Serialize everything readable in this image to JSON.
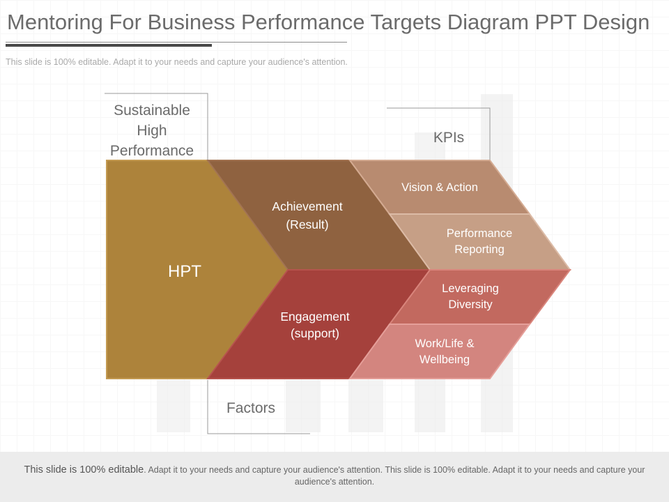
{
  "slide": {
    "title": "Mentoring For Business Performance Targets Diagram PPT Design",
    "subtitle": "This slide is 100% editable. Adapt it to your needs and capture your audience's attention."
  },
  "diagram": {
    "labels": {
      "top_left": [
        "Sustainable",
        "High",
        "Performance"
      ],
      "kpis": "KPIs",
      "factors": "Factors"
    },
    "segments": {
      "hpt": "HPT",
      "achievement": [
        "Achievement",
        "(Result)"
      ],
      "engagement": [
        "Engagement",
        "(support)"
      ],
      "vision_action": "Vision & Action",
      "performance_reporting": [
        "Performance",
        "Reporting"
      ],
      "leveraging_diversity": [
        "Leveraging",
        "Diversity"
      ],
      "work_life": [
        "Work/Life &",
        "Wellbeing"
      ]
    },
    "colors": {
      "hpt": "#ad833b",
      "achievement": "#8f6240",
      "engagement": "#a5413c",
      "vision_action": "#b88b70",
      "performance_reporting": "#c69f86",
      "leveraging_diversity": "#c2695f",
      "work_life": "#d3857f"
    }
  },
  "footer": {
    "lead": "This slide is 100% editable",
    "text": ". Adapt it to your needs and capture your audience's attention. This slide is 100% editable. Adapt it to your needs and capture your audience's attention."
  }
}
